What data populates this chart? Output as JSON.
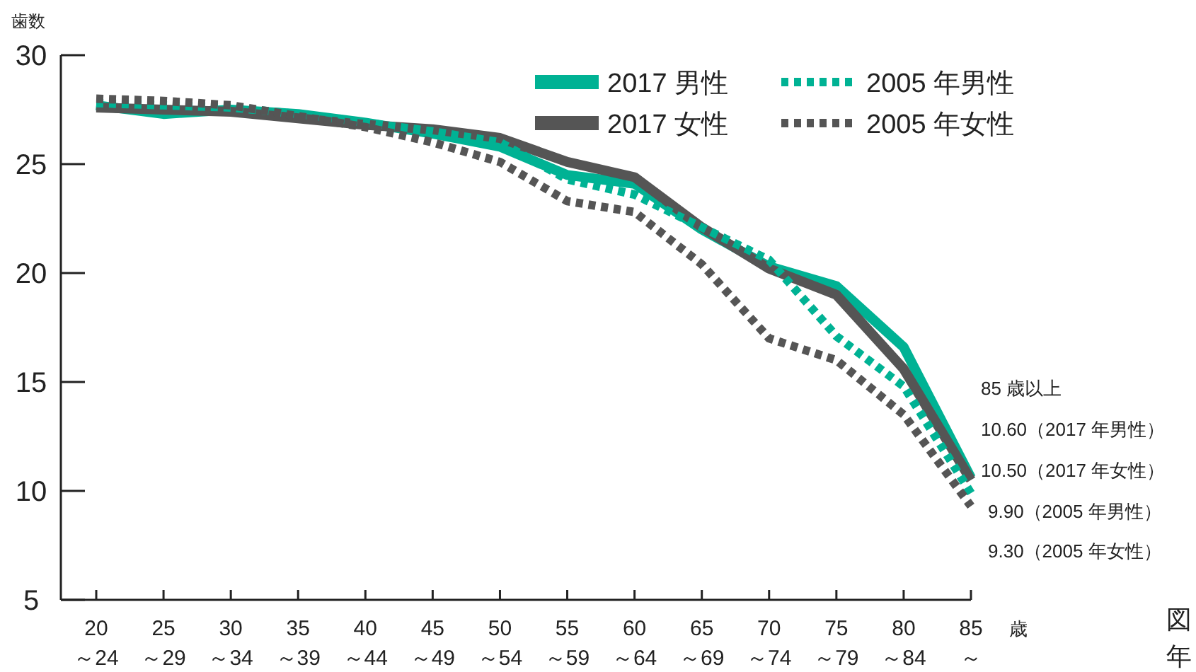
{
  "chart_data": {
    "type": "line",
    "ylabel": "歯数",
    "xlabel": "歳",
    "categories": [
      "20\n～24",
      "25\n～29",
      "30\n～34",
      "35\n～39",
      "40\n～44",
      "45\n～49",
      "50\n～54",
      "55\n～59",
      "60\n～64",
      "65\n～69",
      "70\n～74",
      "75\n～79",
      "80\n～84",
      "85\n～"
    ],
    "series": [
      {
        "name": "2017 男性",
        "color": "#00b294",
        "line_style": "solid",
        "values": [
          27.7,
          27.3,
          27.5,
          27.3,
          26.9,
          26.4,
          25.8,
          24.5,
          24.1,
          22.0,
          20.3,
          19.4,
          16.6,
          10.6
        ]
      },
      {
        "name": "2017 女性",
        "color": "#555555",
        "line_style": "solid",
        "values": [
          27.6,
          27.5,
          27.4,
          27.1,
          26.8,
          26.6,
          26.2,
          25.1,
          24.4,
          22.1,
          20.2,
          19.0,
          15.6,
          10.5
        ]
      },
      {
        "name": "2005 年男性",
        "color": "#00b294",
        "line_style": "dotted",
        "values": [
          27.8,
          27.7,
          27.6,
          27.3,
          26.9,
          26.5,
          26.0,
          24.3,
          23.6,
          22.1,
          20.6,
          17.1,
          14.8,
          9.9
        ]
      },
      {
        "name": "2005 年女性",
        "color": "#555555",
        "line_style": "dotted",
        "values": [
          28.0,
          27.9,
          27.7,
          27.2,
          26.7,
          26.0,
          25.1,
          23.3,
          22.8,
          20.4,
          17.0,
          16.0,
          13.5,
          9.3
        ]
      }
    ],
    "ylim": [
      5,
      30
    ],
    "yticks": [
      5,
      10,
      15,
      20,
      25,
      30
    ],
    "grid": false,
    "legend": "top right",
    "marker": "none",
    "annotations": [
      "85 歳以上",
      "10.60（2017 年男性）",
      "10.50（2017 年女性）",
      "9.90（2005 年男性）",
      "9.30（2005 年女性）",
      "図",
      "年"
    ]
  }
}
